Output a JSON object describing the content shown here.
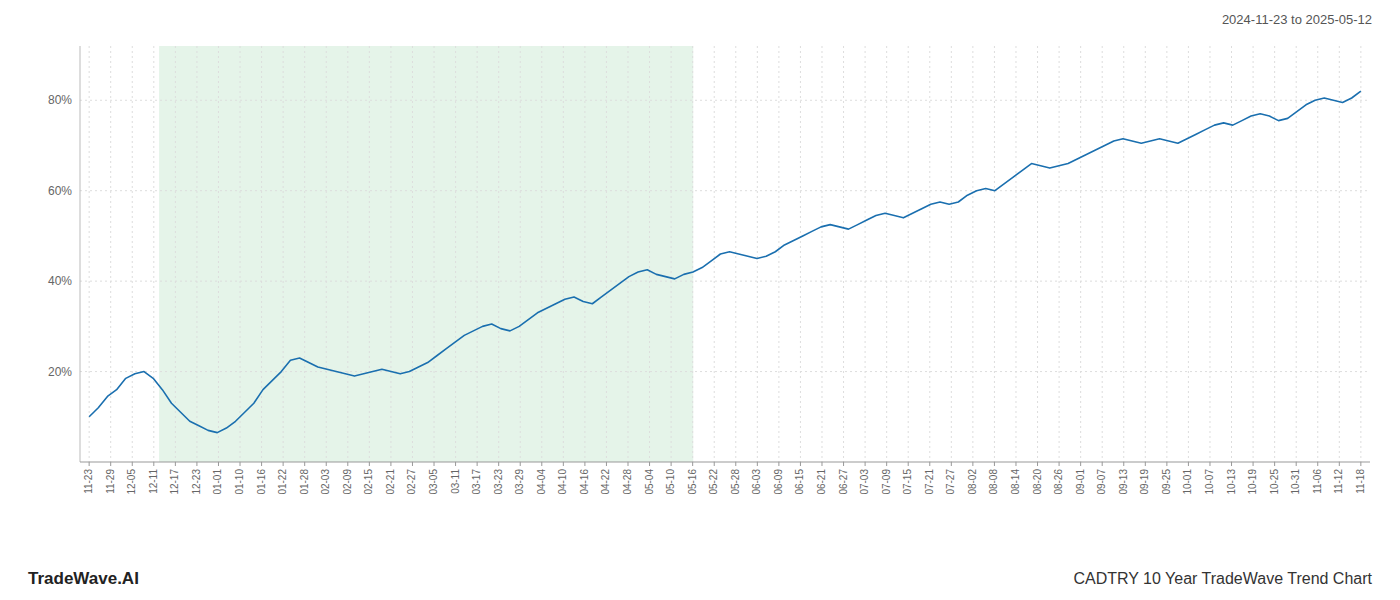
{
  "chart_data": {
    "type": "line",
    "title": "CADTRY 10 Year TradeWave Trend Chart",
    "subtitle": "2024-11-23 to 2025-05-12",
    "annotations": [
      "TradeWave.AI"
    ],
    "color": "#1a6faf",
    "grid": true,
    "shaded_region": {
      "from": 7.645,
      "to": 66.025,
      "color": "#d4edda"
    },
    "xlim": [
      -1,
      140
    ],
    "xticks": [
      {
        "value": 0,
        "label": "11-23"
      },
      {
        "value": 2.3559,
        "label": "11-29"
      },
      {
        "value": 4.7119,
        "label": "12-05"
      },
      {
        "value": 7.0678,
        "label": "12-11"
      },
      {
        "value": 9.4237,
        "label": "12-17"
      },
      {
        "value": 11.7797,
        "label": "12-23"
      },
      {
        "value": 14.1356,
        "label": "01-01"
      },
      {
        "value": 16.4915,
        "label": "01-10"
      },
      {
        "value": 18.8475,
        "label": "01-16"
      },
      {
        "value": 21.2034,
        "label": "01-22"
      },
      {
        "value": 23.5593,
        "label": "01-28"
      },
      {
        "value": 25.9153,
        "label": "02-03"
      },
      {
        "value": 28.2712,
        "label": "02-09"
      },
      {
        "value": 30.6271,
        "label": "02-15"
      },
      {
        "value": 32.9831,
        "label": "02-21"
      },
      {
        "value": 35.339,
        "label": "02-27"
      },
      {
        "value": 37.6949,
        "label": "03-05"
      },
      {
        "value": 40.0508,
        "label": "03-11"
      },
      {
        "value": 42.4068,
        "label": "03-17"
      },
      {
        "value": 44.7627,
        "label": "03-23"
      },
      {
        "value": 47.1186,
        "label": "03-29"
      },
      {
        "value": 49.4746,
        "label": "04-04"
      },
      {
        "value": 51.8305,
        "label": "04-10"
      },
      {
        "value": 54.1864,
        "label": "04-16"
      },
      {
        "value": 56.5424,
        "label": "04-22"
      },
      {
        "value": 58.8983,
        "label": "04-28"
      },
      {
        "value": 61.2542,
        "label": "05-04"
      },
      {
        "value": 63.6102,
        "label": "05-10"
      },
      {
        "value": 65.9661,
        "label": "05-16"
      },
      {
        "value": 68.322,
        "label": "05-22"
      },
      {
        "value": 70.678,
        "label": "05-28"
      },
      {
        "value": 73.0339,
        "label": "06-03"
      },
      {
        "value": 75.3898,
        "label": "06-09"
      },
      {
        "value": 77.7458,
        "label": "06-15"
      },
      {
        "value": 80.1017,
        "label": "06-21"
      },
      {
        "value": 82.4576,
        "label": "06-27"
      },
      {
        "value": 84.8136,
        "label": "07-03"
      },
      {
        "value": 87.1695,
        "label": "07-09"
      },
      {
        "value": 89.5254,
        "label": "07-15"
      },
      {
        "value": 91.8814,
        "label": "07-21"
      },
      {
        "value": 94.2373,
        "label": "07-27"
      },
      {
        "value": 96.5932,
        "label": "08-02"
      },
      {
        "value": 98.9492,
        "label": "08-08"
      },
      {
        "value": 101.3051,
        "label": "08-14"
      },
      {
        "value": 103.661,
        "label": "08-20"
      },
      {
        "value": 106.0169,
        "label": "08-26"
      },
      {
        "value": 108.3729,
        "label": "09-01"
      },
      {
        "value": 110.7288,
        "label": "09-07"
      },
      {
        "value": 113.0847,
        "label": "09-13"
      },
      {
        "value": 115.4407,
        "label": "09-19"
      },
      {
        "value": 117.7966,
        "label": "09-25"
      },
      {
        "value": 120.1525,
        "label": "10-01"
      },
      {
        "value": 122.5085,
        "label": "10-07"
      },
      {
        "value": 124.8644,
        "label": "10-13"
      },
      {
        "value": 127.2203,
        "label": "10-19"
      },
      {
        "value": 129.5763,
        "label": "10-25"
      },
      {
        "value": 131.9322,
        "label": "10-31"
      },
      {
        "value": 134.2881,
        "label": "11-06"
      },
      {
        "value": 136.6441,
        "label": "11-12"
      },
      {
        "value": 139,
        "label": "11-18"
      }
    ],
    "ylim": [
      0,
      92
    ],
    "yticks": [
      {
        "value": 20,
        "label": "20%"
      },
      {
        "value": 40,
        "label": "40%"
      },
      {
        "value": 60,
        "label": "60%"
      },
      {
        "value": 80,
        "label": "80%"
      }
    ],
    "x": [
      0,
      1,
      2,
      3,
      4,
      5,
      6,
      7,
      8,
      9,
      10,
      11,
      12,
      13,
      14,
      15,
      16,
      17,
      18,
      19,
      20,
      21,
      22,
      23,
      24,
      25,
      26,
      27,
      28,
      29,
      30,
      31,
      32,
      33,
      34,
      35,
      36,
      37,
      38,
      39,
      40,
      41,
      42,
      43,
      44,
      45,
      46,
      47,
      48,
      49,
      50,
      51,
      52,
      53,
      54,
      55,
      56,
      57,
      58,
      59,
      60,
      61,
      62,
      63,
      64,
      65,
      66,
      67,
      68,
      69,
      70,
      71,
      72,
      73,
      74,
      75,
      76,
      77,
      78,
      79,
      80,
      81,
      82,
      83,
      84,
      85,
      86,
      87,
      88,
      89,
      90,
      91,
      92,
      93,
      94,
      95,
      96,
      97,
      98,
      99,
      100,
      101,
      102,
      103,
      104,
      105,
      106,
      107,
      108,
      109,
      110,
      111,
      112,
      113,
      114,
      115,
      116,
      117,
      118,
      119,
      120,
      121,
      122,
      123,
      124,
      125,
      126,
      127,
      128,
      129,
      130,
      131,
      132,
      133,
      134,
      135,
      136,
      137,
      138,
      139
    ],
    "values": [
      10.0,
      12.0,
      14.5,
      16.0,
      18.5,
      19.5,
      20.0,
      18.5,
      16.0,
      13.0,
      11.0,
      9.0,
      8.0,
      7.0,
      6.5,
      7.5,
      9.0,
      11.0,
      13.0,
      16.0,
      18.0,
      20.0,
      22.5,
      23.0,
      22.0,
      21.0,
      20.5,
      20.0,
      19.5,
      19.0,
      19.5,
      20.0,
      20.5,
      20.0,
      19.5,
      20.0,
      21.0,
      22.0,
      23.5,
      25.0,
      26.5,
      28.0,
      29.0,
      30.0,
      30.5,
      29.5,
      29.0,
      30.0,
      31.5,
      33.0,
      34.0,
      35.0,
      36.0,
      36.5,
      35.5,
      35.0,
      36.5,
      38.0,
      39.5,
      41.0,
      42.0,
      42.5,
      41.5,
      41.0,
      40.5,
      41.5,
      42.0,
      43.0,
      44.5,
      46.0,
      46.5,
      46.0,
      45.5,
      45.0,
      45.5,
      46.5,
      48.0,
      49.0,
      50.0,
      51.0,
      52.0,
      52.5,
      52.0,
      51.5,
      52.5,
      53.5,
      54.5,
      55.0,
      54.5,
      54.0,
      55.0,
      56.0,
      57.0,
      57.5,
      57.0,
      57.5,
      59.0,
      60.0,
      60.5,
      60.0,
      61.5,
      63.0,
      64.5,
      66.0,
      65.5,
      65.0,
      65.5,
      66.0,
      67.0,
      68.0,
      69.0,
      70.0,
      71.0,
      71.5,
      71.0,
      70.5,
      71.0,
      71.5,
      71.0,
      70.5,
      71.5,
      72.5,
      73.5,
      74.5,
      75.0,
      74.5,
      75.5,
      76.5,
      77.0,
      76.5,
      75.5,
      76.0,
      77.5,
      79.0,
      80.0,
      80.5,
      80.0,
      79.5,
      80.5,
      82.0
    ]
  }
}
